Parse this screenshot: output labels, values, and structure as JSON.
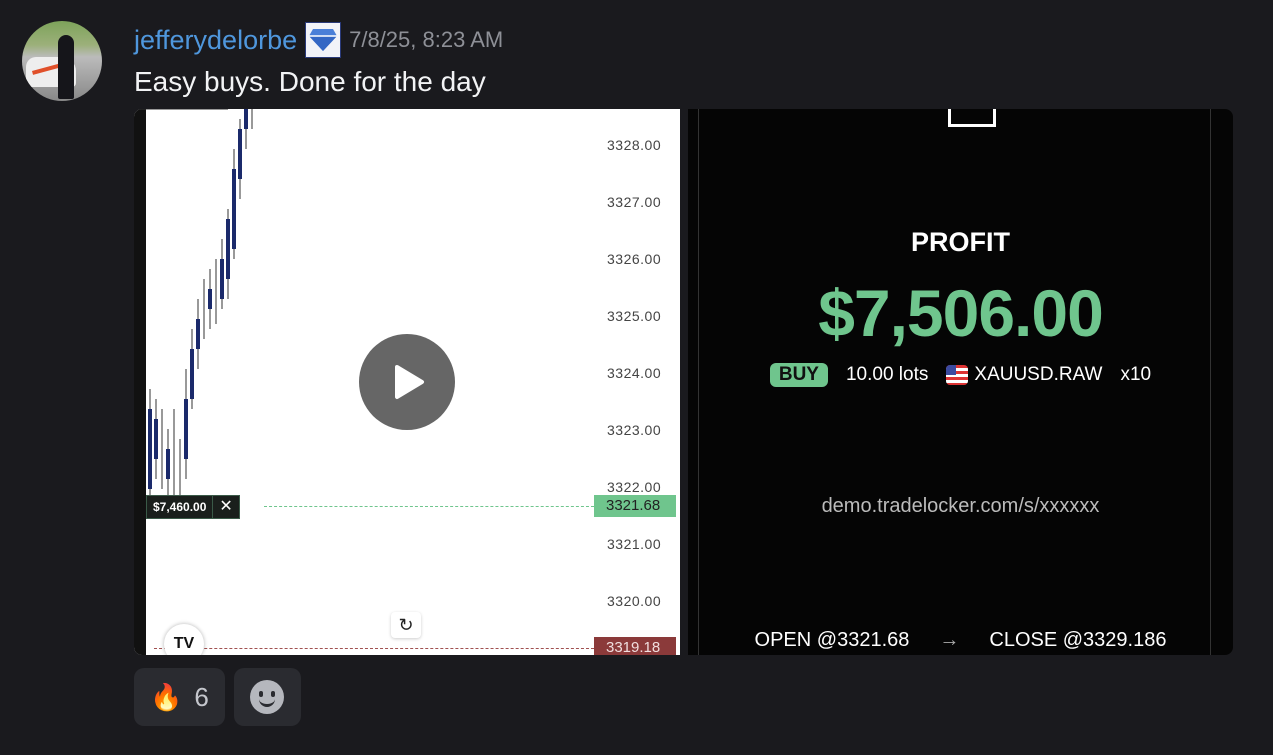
{
  "message": {
    "username": "jefferydelorbe",
    "badge_icon": "diamond-icon",
    "timestamp": "7/8/25, 8:23 AM",
    "text": "Easy buys. Done for the day"
  },
  "chart_image": {
    "price_labels": [
      "3328.00",
      "3327.00",
      "3326.00",
      "3325.00",
      "3324.00",
      "3323.00",
      "3322.00",
      "3321.00",
      "3320.00"
    ],
    "entry_price": "3321.68",
    "stop_price": "3319.18",
    "position_pnl": "$7,460.00",
    "close_glyph": "✕",
    "logo_text": "TV",
    "entry_color": "#6fc58d",
    "stop_color": "#8b3a3a"
  },
  "profit_card": {
    "label": "PROFIT",
    "amount": "$7,506.00",
    "side": "BUY",
    "lots": "10.00 lots",
    "symbol": "XAUUSD.RAW",
    "leverage": "x10",
    "url": "demo.tradelocker.com/s/xxxxxx",
    "open": "OPEN @3321.68",
    "close": "CLOSE @3329.186",
    "accent": "#6fc58d"
  },
  "reactions": [
    {
      "emoji": "🔥",
      "count": "6"
    }
  ]
}
